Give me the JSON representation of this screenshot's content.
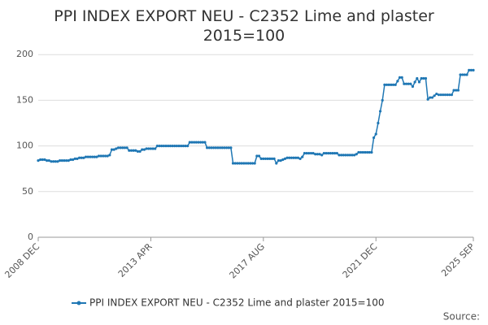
{
  "chart_data": {
    "type": "line",
    "title": "PPI INDEX EXPORT NEU - C2352 Lime and plaster 2015=100",
    "source": "Source:",
    "categories": [
      "2008 DEC",
      null,
      null,
      null,
      null,
      null,
      null,
      null,
      null,
      null,
      null,
      null,
      null,
      null,
      null,
      null,
      null,
      null,
      null,
      null,
      null,
      null,
      null,
      null,
      null,
      null,
      null,
      null,
      null,
      null,
      null,
      null,
      null,
      null,
      null,
      null,
      null,
      null,
      null,
      null,
      null,
      null,
      null,
      null,
      null,
      null,
      null,
      null,
      null,
      null,
      null,
      null,
      "2013 APR",
      null,
      null,
      null,
      null,
      null,
      null,
      null,
      null,
      null,
      null,
      null,
      null,
      null,
      null,
      null,
      null,
      null,
      null,
      null,
      null,
      null,
      null,
      null,
      null,
      null,
      null,
      null,
      null,
      null,
      null,
      null,
      null,
      null,
      null,
      null,
      null,
      null,
      null,
      null,
      null,
      null,
      null,
      null,
      null,
      null,
      null,
      null,
      null,
      null,
      null,
      null,
      "2017 AUG",
      null,
      null,
      null,
      null,
      null,
      null,
      null,
      null,
      null,
      null,
      null,
      null,
      null,
      null,
      null,
      null,
      null,
      null,
      null,
      null,
      null,
      null,
      null,
      null,
      null,
      null,
      null,
      null,
      null,
      null,
      null,
      null,
      null,
      null,
      null,
      null,
      null,
      null,
      null,
      null,
      null,
      null,
      null,
      null,
      null,
      null,
      null,
      null,
      null,
      null,
      null,
      "2021 DEC",
      null,
      null,
      null,
      null,
      null,
      null,
      null,
      null,
      null,
      null,
      null,
      null,
      null,
      null,
      null,
      null,
      null,
      null,
      null,
      null,
      null,
      null,
      null,
      null,
      null,
      null,
      null,
      null,
      null,
      null,
      null,
      null,
      null,
      null,
      null,
      null,
      null,
      null,
      null,
      null,
      null,
      null,
      null,
      null,
      "2025 SEP"
    ],
    "series": [
      {
        "name": "PPI INDEX EXPORT NEU - C2352 Lime and plaster 2015=100",
        "color": "#1f77b4",
        "values": [
          84,
          85,
          85,
          85,
          84,
          84,
          83,
          83,
          83,
          83,
          84,
          84,
          84,
          84,
          84,
          85,
          85,
          86,
          86,
          87,
          87,
          87,
          88,
          88,
          88,
          88,
          88,
          88,
          89,
          89,
          89,
          89,
          89,
          90,
          96,
          96,
          97,
          98,
          98,
          98,
          98,
          98,
          95,
          95,
          95,
          95,
          94,
          94,
          96,
          96,
          97,
          97,
          97,
          97,
          97,
          100,
          100,
          100,
          100,
          100,
          100,
          100,
          100,
          100,
          100,
          100,
          100,
          100,
          100,
          100,
          104,
          104,
          104,
          104,
          104,
          104,
          104,
          104,
          98,
          98,
          98,
          98,
          98,
          98,
          98,
          98,
          98,
          98,
          98,
          98,
          81,
          81,
          81,
          81,
          81,
          81,
          81,
          81,
          81,
          81,
          81,
          89,
          89,
          86,
          86,
          86,
          86,
          86,
          86,
          86,
          81,
          84,
          84,
          85,
          86,
          87,
          87,
          87,
          87,
          87,
          87,
          86,
          88,
          92,
          92,
          92,
          92,
          92,
          91,
          91,
          91,
          90,
          92,
          92,
          92,
          92,
          92,
          92,
          92,
          90,
          90,
          90,
          90,
          90,
          90,
          90,
          90,
          91,
          93,
          93,
          93,
          93,
          93,
          93,
          93,
          109,
          113,
          125,
          138,
          150,
          167,
          167,
          167,
          167,
          167,
          167,
          171,
          175,
          175,
          168,
          168,
          168,
          168,
          165,
          170,
          174,
          170,
          174,
          174,
          174,
          151,
          153,
          153,
          155,
          157,
          156,
          156,
          156,
          156,
          156,
          156,
          156,
          161,
          161,
          161,
          178,
          178,
          178,
          178,
          183,
          183,
          183
        ]
      }
    ],
    "ylim": [
      0,
      210
    ],
    "yticks": [
      0,
      50,
      100,
      150,
      200
    ],
    "grid": true
  }
}
